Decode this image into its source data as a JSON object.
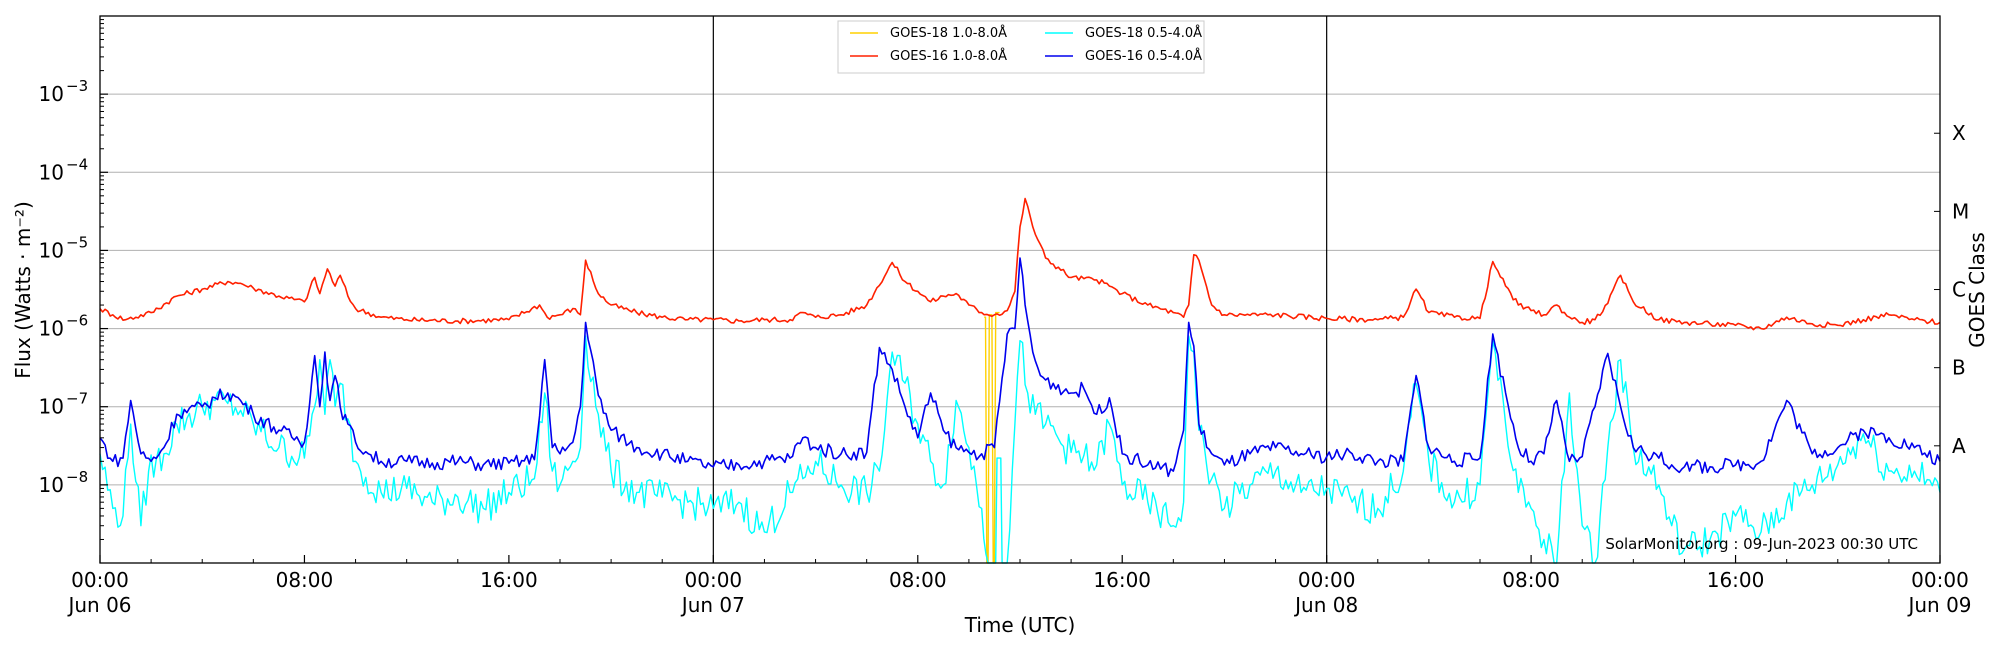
{
  "chart_data": {
    "type": "line",
    "title": "",
    "xlabel": "Time (UTC)",
    "ylabel": "Flux (Watts · m⁻²)",
    "right_ylabel": "GOES Class",
    "credit": "SolarMonitor.org : 09-Jun-2023 00:30 UTC",
    "x_unit": "hours since 2023-06-06 00:00 UTC",
    "xlim": [
      0,
      72
    ],
    "ylim": [
      1e-09,
      0.01
    ],
    "yscale": "log",
    "grid": "horizontal",
    "legend_position": "top-center",
    "x_ticks": [
      {
        "value": 0,
        "label": "00:00",
        "label2": "Jun 06"
      },
      {
        "value": 8,
        "label": "08:00",
        "label2": ""
      },
      {
        "value": 16,
        "label": "16:00",
        "label2": ""
      },
      {
        "value": 24,
        "label": "00:00",
        "label2": "Jun 07"
      },
      {
        "value": 32,
        "label": "08:00",
        "label2": ""
      },
      {
        "value": 40,
        "label": "16:00",
        "label2": ""
      },
      {
        "value": 48,
        "label": "00:00",
        "label2": "Jun 08"
      },
      {
        "value": 56,
        "label": "08:00",
        "label2": ""
      },
      {
        "value": 64,
        "label": "16:00",
        "label2": ""
      },
      {
        "value": 72,
        "label": "00:00",
        "label2": "Jun 09"
      }
    ],
    "y_ticks": [
      {
        "value": 1e-08,
        "base": "10",
        "exp": "−8"
      },
      {
        "value": 1e-07,
        "base": "10",
        "exp": "−7"
      },
      {
        "value": 1e-06,
        "base": "10",
        "exp": "−6"
      },
      {
        "value": 1e-05,
        "base": "10",
        "exp": "−5"
      },
      {
        "value": 0.0001,
        "base": "10",
        "exp": "−4"
      },
      {
        "value": 0.001,
        "base": "10",
        "exp": "−3"
      }
    ],
    "day_boundaries": [
      24,
      48
    ],
    "goes_classes": [
      {
        "label": "A",
        "value": 3.16e-08
      },
      {
        "label": "B",
        "value": 3.16e-07
      },
      {
        "label": "C",
        "value": 3.16e-06
      },
      {
        "label": "M",
        "value": 3.16e-05
      },
      {
        "label": "X",
        "value": 0.000316
      }
    ],
    "series": [
      {
        "name": "GOES-18 1.0-8.0Å",
        "color": "#ffd000",
        "x": [
          34.6,
          34.65,
          34.7,
          34.75,
          34.8,
          34.9,
          34.95,
          35.0,
          35.05,
          35.1,
          35.2
        ],
        "y": [
          1.4e-06,
          1.4e-06,
          1e-09,
          1e-09,
          1.5e-06,
          1.5e-06,
          1e-09,
          1e-09,
          1.6e-06,
          1.6e-06,
          1.6e-06
        ]
      },
      {
        "name": "GOES-16 1.0-8.0Å",
        "color": "#ff2000",
        "x": [
          0,
          0.5,
          1,
          2,
          3,
          4,
          5,
          5.5,
          6,
          7,
          8,
          8.4,
          8.6,
          8.9,
          9.2,
          9.4,
          9.7,
          10,
          11,
          12,
          14,
          16,
          17.2,
          17.5,
          18,
          18.5,
          18.8,
          19,
          19.5,
          20,
          21,
          22,
          23,
          24,
          25,
          26,
          27,
          27.5,
          28,
          29,
          30,
          31,
          31.5,
          32,
          32.5,
          33,
          33.5,
          34,
          34.5,
          35,
          35.5,
          35.8,
          36,
          36.2,
          36.5,
          37,
          38,
          39,
          39.5,
          40,
          41,
          42,
          42.4,
          42.6,
          42.8,
          43,
          43.5,
          44,
          46,
          48,
          50,
          51,
          51.5,
          52,
          53,
          54,
          54.5,
          55,
          55.5,
          56,
          56.5,
          57,
          57.5,
          58,
          58.5,
          59,
          59.5,
          60,
          61,
          62,
          63,
          64,
          65,
          66,
          67,
          68,
          69,
          70,
          71,
          72
        ],
        "y": [
          1.8e-06,
          1.5e-06,
          1.3e-06,
          1.6e-06,
          2.6e-06,
          3.2e-06,
          4e-06,
          3.8e-06,
          3.3e-06,
          2.6e-06,
          2.2e-06,
          4.5e-06,
          2.8e-06,
          5.8e-06,
          3.5e-06,
          4.8e-06,
          2.6e-06,
          1.8e-06,
          1.4e-06,
          1.3e-06,
          1.25e-06,
          1.3e-06,
          2e-06,
          1.4e-06,
          1.5e-06,
          1.8e-06,
          1.5e-06,
          7.5e-06,
          2.8e-06,
          2e-06,
          1.6e-06,
          1.4e-06,
          1.3e-06,
          1.3e-06,
          1.25e-06,
          1.3e-06,
          1.3e-06,
          1.6e-06,
          1.4e-06,
          1.5e-06,
          2e-06,
          7e-06,
          4e-06,
          3e-06,
          2.2e-06,
          2.6e-06,
          2.8e-06,
          2e-06,
          1.6e-06,
          1.5e-06,
          1.7e-06,
          3e-06,
          2e-05,
          4.6e-05,
          2e-05,
          8e-06,
          4.5e-06,
          4.2e-06,
          3.5e-06,
          2.8e-06,
          2e-06,
          1.6e-06,
          1.4e-06,
          2e-06,
          8.8e-06,
          7.5e-06,
          2e-06,
          1.5e-06,
          1.5e-06,
          1.35e-06,
          1.3e-06,
          1.4e-06,
          3.2e-06,
          1.6e-06,
          1.4e-06,
          1.35e-06,
          7.2e-06,
          3.5e-06,
          2e-06,
          1.7e-06,
          1.5e-06,
          2e-06,
          1.4e-06,
          1.2e-06,
          1.3e-06,
          2.1e-06,
          4.8e-06,
          2.2e-06,
          1.3e-06,
          1.2e-06,
          1.15e-06,
          1.1e-06,
          1e-06,
          1.4e-06,
          1.15e-06,
          1.1e-06,
          1.3e-06,
          1.5e-06,
          1.3e-06,
          1.2e-06
        ]
      },
      {
        "name": "GOES-18 0.5-4.0Å",
        "color": "#00ffff",
        "x": [
          0,
          0.5,
          0.9,
          1.2,
          1.6,
          1.9,
          2.5,
          3,
          4,
          4.5,
          5,
          5.5,
          6,
          7,
          8,
          8.4,
          8.6,
          8.8,
          9,
          9.2,
          9.4,
          9.7,
          10,
          11,
          12,
          13,
          14,
          15,
          16,
          17,
          17.4,
          17.7,
          18,
          18.5,
          18.8,
          19,
          19.5,
          20,
          21,
          22,
          23,
          24,
          25,
          26,
          27,
          27.5,
          28,
          29,
          30,
          30.5,
          31,
          31.5,
          32,
          32.5,
          33,
          33.5,
          34,
          34.5,
          34.75,
          34.8,
          35.05,
          35.1,
          35.25,
          35.3,
          35.5,
          35.8,
          36,
          36.3,
          36.6,
          37,
          38,
          39,
          39.5,
          40,
          41,
          42,
          42.4,
          42.6,
          42.8,
          43,
          43.5,
          44,
          45,
          46,
          47,
          48,
          49,
          50,
          51,
          51.5,
          52,
          53,
          54,
          54.5,
          55,
          55.5,
          56,
          56.5,
          57,
          57.5,
          58,
          58.5,
          59,
          59.5,
          60,
          61,
          61.5,
          62,
          63,
          64,
          65,
          66,
          67,
          68,
          69,
          70,
          71,
          72
        ],
        "y": [
          2.5e-08,
          5e-09,
          4e-09,
          6e-08,
          3e-09,
          1.5e-08,
          2.5e-08,
          6e-08,
          1e-07,
          1.2e-07,
          1.1e-07,
          9e-08,
          6e-08,
          3e-08,
          2.2e-08,
          1e-07,
          4e-07,
          8e-08,
          4e-07,
          1e-07,
          2e-07,
          7e-08,
          2e-08,
          8e-09,
          9e-09,
          6e-09,
          7e-09,
          5e-09,
          8e-09,
          1.2e-08,
          1.5e-07,
          1.5e-08,
          1e-08,
          2e-08,
          3e-08,
          8e-07,
          8e-08,
          1.5e-08,
          8e-09,
          7e-09,
          6e-09,
          5e-09,
          6e-09,
          2.5e-09,
          8e-09,
          1.2e-08,
          2e-08,
          1e-08,
          8e-09,
          1.5e-08,
          5e-07,
          2e-07,
          6e-08,
          2e-08,
          1e-08,
          1.2e-07,
          3e-08,
          5e-09,
          1e-09,
          1e-09,
          1e-09,
          2.2e-08,
          2.2e-08,
          1e-09,
          1e-09,
          6e-08,
          7e-07,
          1.5e-07,
          8e-08,
          6e-08,
          2.6e-08,
          1.8e-08,
          6e-08,
          1e-08,
          6e-09,
          3e-09,
          6e-09,
          8e-07,
          5e-07,
          5e-08,
          1.2e-08,
          5e-09,
          1e-08,
          1.5e-08,
          8e-09,
          9e-09,
          6e-09,
          5e-09,
          1.5e-08,
          2e-07,
          2e-08,
          6e-09,
          1e-08,
          7e-07,
          6e-08,
          8e-09,
          5e-09,
          2e-09,
          1e-09,
          1.5e-07,
          3e-09,
          1e-09,
          3e-08,
          4e-07,
          3e-08,
          1e-08,
          3e-09,
          1.5e-09,
          2e-09,
          4e-09,
          2.5e-09,
          6e-09,
          1e-08,
          1.8e-08,
          4.5e-08,
          1.5e-08,
          1.5e-08,
          8e-09
        ]
      },
      {
        "name": "GOES-16 0.5-4.0Å",
        "color": "#0000ee",
        "x": [
          0,
          0.5,
          0.9,
          1.2,
          1.6,
          2,
          2.5,
          3,
          4,
          4.5,
          5,
          5.5,
          6,
          7,
          8,
          8.4,
          8.6,
          8.8,
          9,
          9.2,
          9.4,
          9.7,
          10,
          10.5,
          11,
          12,
          13,
          14,
          15,
          16,
          17,
          17.4,
          17.7,
          18,
          18.5,
          18.8,
          19,
          19.5,
          20,
          21,
          22,
          23,
          24,
          25,
          26,
          27,
          27.5,
          28,
          29,
          30,
          30.5,
          31,
          31.5,
          32,
          32.5,
          33,
          33.5,
          34,
          34.5,
          35,
          35.5,
          35.8,
          36,
          36.2,
          36.5,
          36.8,
          37,
          38,
          38.5,
          39,
          39.5,
          40,
          41,
          42,
          42.4,
          42.6,
          42.8,
          43,
          43.5,
          44,
          45,
          46,
          47,
          48,
          49,
          50,
          51,
          51.5,
          52,
          53,
          54,
          54.5,
          55,
          55.5,
          56,
          56.5,
          57,
          57.5,
          58,
          58.5,
          59,
          59.5,
          60,
          61,
          61.5,
          62,
          63,
          64,
          65,
          66,
          67,
          68,
          69,
          70,
          71,
          72
        ],
        "y": [
          4e-08,
          2e-08,
          2.2e-08,
          1.2e-07,
          2.5e-08,
          2e-08,
          3e-08,
          8e-08,
          1e-07,
          1.3e-07,
          1.5e-07,
          1.2e-07,
          8e-08,
          5e-08,
          3.5e-08,
          4.5e-07,
          1e-07,
          5e-07,
          1.2e-07,
          2.5e-07,
          1e-07,
          6e-08,
          3.5e-08,
          2.5e-08,
          2e-08,
          2e-08,
          1.9e-08,
          2e-08,
          1.8e-08,
          1.9e-08,
          2.1e-08,
          4e-07,
          3e-08,
          2.5e-08,
          3.5e-08,
          1e-07,
          1.2e-06,
          1.4e-07,
          5e-08,
          3e-08,
          2.5e-08,
          2e-08,
          1.7e-08,
          1.8e-08,
          2e-08,
          2.2e-08,
          4e-08,
          3e-08,
          2.5e-08,
          2.6e-08,
          5.7e-07,
          3e-07,
          1e-07,
          4e-08,
          1.5e-07,
          5e-08,
          3e-08,
          2.6e-08,
          2.5e-08,
          3e-08,
          8.5e-07,
          1e-06,
          8e-06,
          2e-06,
          5e-07,
          2.5e-07,
          2.2e-07,
          1.5e-07,
          1.7e-07,
          8e-08,
          1.3e-07,
          2.5e-08,
          1.8e-08,
          1.5e-08,
          5e-08,
          1.2e-06,
          6e-07,
          6e-08,
          2.5e-08,
          1.8e-08,
          2.5e-08,
          3e-08,
          2.5e-08,
          2.3e-08,
          2.5e-08,
          2e-08,
          2e-08,
          2.5e-07,
          3e-08,
          2e-08,
          2.2e-08,
          8.5e-07,
          1.5e-07,
          3e-08,
          2e-08,
          2.5e-08,
          1.2e-07,
          2e-08,
          2.3e-08,
          1e-07,
          4.8e-07,
          1e-07,
          3e-08,
          2.2e-08,
          1.8e-08,
          1.7e-08,
          1.7e-08,
          1.8e-08,
          2e-08,
          1.2e-07,
          2.5e-08,
          3e-08,
          5e-08,
          4e-08,
          3e-08,
          2e-08
        ]
      }
    ]
  }
}
